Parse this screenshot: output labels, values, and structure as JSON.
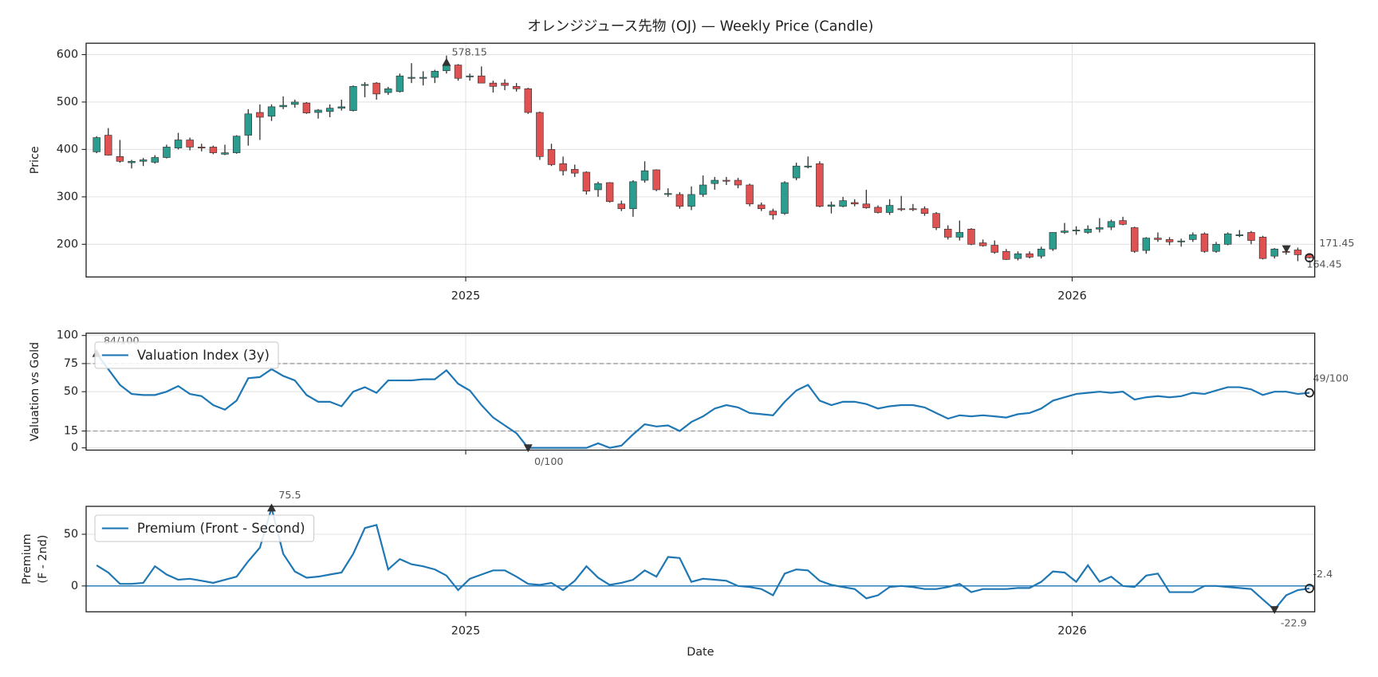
{
  "chart_data": [
    {
      "type": "candlestick",
      "title": "オレンジジュース先物 (OJ) — Weekly Price (Candle)",
      "ylabel": "Price",
      "open": [
        395,
        430,
        385,
        372,
        375,
        373,
        383,
        403,
        420,
        405,
        405,
        390,
        393,
        430,
        478,
        470,
        490,
        495,
        498,
        478,
        480,
        487,
        482,
        535,
        540,
        520,
        522,
        550,
        550,
        552,
        566,
        578,
        553,
        555,
        540,
        540,
        533,
        528,
        478,
        400,
        370,
        358,
        352,
        315,
        330,
        285,
        275,
        335,
        357,
        305,
        305,
        280,
        305,
        328,
        335,
        335,
        325,
        283,
        270,
        265,
        340,
        363,
        370,
        280,
        280,
        288,
        285,
        278,
        267,
        275,
        275,
        275,
        265,
        232,
        215,
        232,
        203,
        198,
        185,
        170,
        180,
        175,
        190,
        225,
        228,
        225,
        232,
        236,
        250,
        235,
        187,
        213,
        210,
        205,
        210,
        222,
        185,
        200,
        218,
        225,
        215,
        175,
        185,
        188,
        178
      ],
      "high": [
        428,
        445,
        420,
        378,
        382,
        388,
        410,
        435,
        425,
        412,
        408,
        410,
        430,
        485,
        495,
        495,
        512,
        505,
        500,
        485,
        495,
        505,
        535,
        542,
        542,
        532,
        560,
        582,
        565,
        568,
        598,
        580,
        560,
        575,
        545,
        548,
        540,
        530,
        480,
        412,
        385,
        368,
        354,
        332,
        331,
        292,
        335,
        375,
        358,
        318,
        310,
        322,
        345,
        342,
        342,
        340,
        328,
        288,
        275,
        333,
        372,
        385,
        375,
        290,
        300,
        295,
        315,
        282,
        295,
        302,
        285,
        280,
        268,
        240,
        250,
        234,
        210,
        208,
        190,
        185,
        185,
        195,
        225,
        245,
        238,
        240,
        255,
        252,
        258,
        237,
        215,
        225,
        215,
        212,
        225,
        225,
        205,
        225,
        230,
        228,
        218,
        192,
        190,
        193,
        180
      ],
      "low": [
        392,
        387,
        372,
        360,
        365,
        370,
        381,
        400,
        398,
        396,
        390,
        388,
        391,
        408,
        420,
        460,
        485,
        488,
        475,
        465,
        468,
        482,
        480,
        510,
        505,
        515,
        520,
        540,
        535,
        540,
        560,
        545,
        545,
        540,
        520,
        525,
        522,
        475,
        378,
        365,
        345,
        342,
        305,
        300,
        288,
        270,
        258,
        330,
        312,
        300,
        275,
        272,
        300,
        315,
        325,
        318,
        280,
        270,
        252,
        262,
        335,
        360,
        278,
        265,
        278,
        280,
        275,
        265,
        262,
        270,
        270,
        260,
        230,
        210,
        208,
        198,
        195,
        180,
        167,
        166,
        170,
        170,
        186,
        222,
        220,
        222,
        225,
        230,
        240,
        182,
        180,
        205,
        198,
        195,
        205,
        182,
        182,
        198,
        215,
        200,
        168,
        170,
        178,
        164.45,
        170
      ],
      "close": [
        425,
        388,
        375,
        375,
        378,
        383,
        405,
        420,
        405,
        403,
        393,
        393,
        428,
        475,
        468,
        490,
        493,
        500,
        477,
        483,
        487,
        490,
        533,
        537,
        517,
        528,
        555,
        552,
        552,
        565,
        578.15,
        550,
        555,
        540,
        533,
        535,
        528,
        478,
        385,
        368,
        355,
        350,
        312,
        328,
        290,
        275,
        332,
        355,
        315,
        307,
        280,
        305,
        325,
        335,
        333,
        325,
        285,
        275,
        262,
        330,
        365,
        365,
        280,
        283,
        292,
        285,
        277,
        267,
        282,
        273,
        273,
        265,
        235,
        215,
        225,
        200,
        197,
        183,
        168,
        180,
        173,
        190,
        225,
        228,
        230,
        232,
        235,
        248,
        242,
        185,
        213,
        210,
        205,
        207,
        220,
        185,
        200,
        222,
        220,
        208,
        170,
        190,
        183,
        178,
        171.45
      ],
      "up_color": "#2a9d8f",
      "down_color": "#e05252",
      "xlim": [
        -0.9,
        104.45
      ],
      "xticks": [
        {
          "value": 31.65,
          "label": "2025"
        },
        {
          "value": 83.65,
          "label": "2026"
        }
      ],
      "ylim": [
        131,
        624
      ],
      "yticks": [
        200,
        300,
        400,
        500,
        600
      ],
      "grid": true
    },
    {
      "type": "line",
      "ylabel": "Valuation vs Gold",
      "legend": "upper left",
      "series": [
        {
          "name": "Valuation Index (3y)",
          "color": "#1f77b4",
          "values": [
            84,
            70,
            56,
            48,
            47,
            47,
            50,
            55,
            48,
            46,
            38,
            34,
            42,
            62,
            63,
            70,
            64,
            60,
            47,
            41,
            41,
            37,
            50,
            54,
            49,
            60,
            60,
            60,
            61,
            61,
            69,
            57,
            51,
            38,
            27,
            20,
            13,
            0,
            0,
            0,
            0,
            0,
            0,
            4,
            0,
            2,
            12,
            21,
            19,
            20,
            15,
            23,
            28,
            35,
            38,
            36,
            31,
            30,
            29,
            41,
            51,
            56,
            42,
            38,
            41,
            41,
            39,
            35,
            37,
            38,
            38,
            36,
            31,
            26,
            29,
            28,
            29,
            28,
            27,
            30,
            31,
            35,
            42,
            45,
            48,
            49,
            50,
            49,
            50,
            43,
            45,
            46,
            45,
            46,
            49,
            48,
            51,
            54,
            54,
            52,
            47,
            50,
            50,
            48,
            49
          ],
          "value_labels": [
            "84/100",
            null,
            null,
            null,
            null,
            null,
            null,
            null,
            null,
            null,
            null,
            null,
            null,
            null,
            null,
            null,
            null,
            null,
            null,
            null,
            null,
            null,
            null,
            null,
            null,
            null,
            null,
            null,
            null,
            null,
            null,
            null,
            null,
            null,
            null,
            null,
            null,
            "0/100",
            null,
            null,
            null,
            null,
            null,
            null,
            null,
            null,
            null,
            null,
            null,
            null,
            null,
            null,
            null,
            null,
            null,
            null,
            null,
            null,
            null,
            null,
            null,
            null,
            null,
            null,
            null,
            null,
            null,
            null,
            null,
            null,
            null,
            null,
            null,
            null,
            null,
            null,
            null,
            null,
            null,
            null,
            null,
            null,
            null,
            null,
            null,
            null,
            null,
            null,
            null,
            null,
            null,
            null,
            null,
            null,
            null,
            null,
            null,
            null,
            null,
            null,
            null,
            null,
            null,
            null,
            "49/100"
          ]
        }
      ],
      "reference_lines": [
        15,
        75
      ],
      "xlim": [
        -0.9,
        104.45
      ],
      "xticks": [
        31.65,
        83.65
      ],
      "xtick_labels": false,
      "ylim": [
        -2,
        102
      ],
      "yticks": [
        0,
        15,
        50,
        75,
        100
      ],
      "grid": true
    },
    {
      "type": "line",
      "ylabel": [
        "Premium",
        "(F - 2nd)"
      ],
      "xlabel": "Date",
      "legend": "upper left",
      "series": [
        {
          "name": "Premium (Front - Second)",
          "color": "#1f77b4",
          "values": [
            20,
            13,
            2,
            2,
            3,
            19,
            11,
            6,
            7,
            5,
            3,
            6,
            9,
            24,
            37,
            75.5,
            31,
            14,
            8,
            9,
            11,
            13,
            31,
            56,
            59,
            16,
            26,
            21,
            19,
            16,
            10,
            -4,
            7,
            11,
            15,
            15,
            9,
            2,
            1,
            3,
            -4,
            5,
            19,
            8,
            1,
            3,
            6,
            15,
            9,
            28,
            27,
            4,
            7,
            6,
            5,
            0,
            -1,
            -3,
            -9,
            12,
            16,
            15,
            5,
            1,
            -1,
            -3,
            -12,
            -9,
            -1,
            0,
            -1,
            -3,
            -3,
            -1,
            2,
            -6,
            -3,
            -3,
            -3,
            -2,
            -2,
            4,
            14,
            13,
            4,
            20,
            4,
            9,
            0,
            -1,
            10,
            12,
            -6,
            -6,
            -6,
            0,
            0,
            -1,
            -2,
            -3,
            -13,
            -22.9,
            -9,
            -4,
            -2.4
          ]
        }
      ],
      "hline": 0,
      "xlim": [
        -0.9,
        104.45
      ],
      "xticks": [
        {
          "value": 31.65,
          "label": "2025"
        },
        {
          "value": 83.65,
          "label": "2026"
        }
      ],
      "ylim": [
        -25,
        77
      ],
      "yticks": [
        0,
        50
      ],
      "grid": true
    }
  ]
}
